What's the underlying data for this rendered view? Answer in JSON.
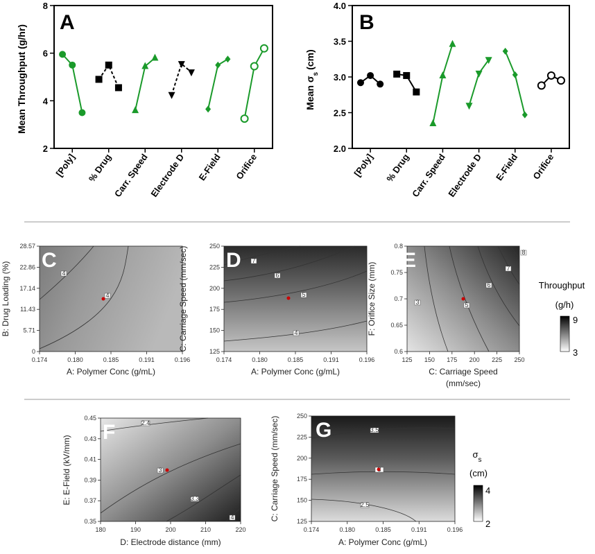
{
  "figure": {
    "separator_color": "#9a9a9a",
    "series_colors": {
      "green": "#1a9a2a",
      "black": "#000000"
    }
  },
  "chart_data": [
    {
      "type": "line",
      "panel": "A",
      "ylabel": "Mean Throughput (g/hr)",
      "ylim": [
        2,
        8
      ],
      "yticks": [
        "2",
        "4",
        "6",
        "8"
      ],
      "categories": [
        "[Poly]",
        "% Drug",
        "Carr. Speed",
        "Electrode D",
        "E-Field",
        "Orifice"
      ],
      "factors": [
        {
          "name": "[Poly]",
          "color": "green",
          "dashed": false,
          "marker": "circle",
          "values": [
            5.95,
            5.5,
            3.5
          ]
        },
        {
          "name": "% Drug",
          "color": "black",
          "dashed": true,
          "marker": "square",
          "values": [
            4.9,
            5.5,
            4.55
          ]
        },
        {
          "name": "Carr. Speed",
          "color": "green",
          "dashed": false,
          "marker": "triangle-up",
          "values": [
            3.6,
            5.45,
            5.8
          ]
        },
        {
          "name": "Electrode D",
          "color": "black",
          "dashed": true,
          "marker": "triangle-down",
          "values": [
            4.25,
            5.55,
            5.2
          ]
        },
        {
          "name": "E-Field",
          "color": "green",
          "dashed": false,
          "marker": "diamond",
          "values": [
            3.65,
            5.5,
            5.75
          ]
        },
        {
          "name": "Orifice",
          "color": "green",
          "dashed": false,
          "marker": "open-circle",
          "values": [
            3.25,
            5.45,
            6.2
          ]
        }
      ]
    },
    {
      "type": "line",
      "panel": "B",
      "ylabel_main": "Mean σ",
      "ylabel_sub": "s",
      "ylabel_unit": "(cm)",
      "ylim": [
        2.0,
        4.0
      ],
      "yticks": [
        "2.0",
        "2.5",
        "3.0",
        "3.5",
        "4.0"
      ],
      "categories": [
        "[Poly]",
        "% Drug",
        "Carr. Speed",
        "Electrode D",
        "E-Field",
        "Orifice"
      ],
      "factors": [
        {
          "name": "[Poly]",
          "color": "black",
          "dashed": false,
          "marker": "circle",
          "values": [
            2.92,
            3.02,
            2.9
          ]
        },
        {
          "name": "% Drug",
          "color": "black",
          "dashed": false,
          "marker": "square",
          "values": [
            3.04,
            3.02,
            2.79
          ]
        },
        {
          "name": "Carr. Speed",
          "color": "green",
          "dashed": false,
          "marker": "triangle-up",
          "values": [
            2.35,
            3.02,
            3.46
          ]
        },
        {
          "name": "Electrode D",
          "color": "green",
          "dashed": false,
          "marker": "triangle-down",
          "values": [
            2.6,
            3.05,
            3.24
          ]
        },
        {
          "name": "E-Field",
          "color": "green",
          "dashed": false,
          "marker": "diamond",
          "values": [
            3.36,
            3.03,
            2.47
          ]
        },
        {
          "name": "Orifice",
          "color": "black",
          "dashed": false,
          "marker": "open-circle",
          "values": [
            2.88,
            3.02,
            2.95
          ]
        }
      ]
    },
    {
      "type": "heatmap",
      "panel": "C",
      "xlabel": "A: Polymer Conc (g/mL)",
      "ylabel": "B: Drug Loading (%)",
      "xlim": [
        0.174,
        0.196
      ],
      "ylim": [
        0,
        28.57
      ],
      "xticks": [
        "0.174",
        "0.180",
        "0.185",
        "0.191",
        "0.196"
      ],
      "yticks": [
        "0",
        "5.71",
        "11.43",
        "17.14",
        "22.86",
        "28.57"
      ],
      "contour_labels": [
        "4",
        "4"
      ],
      "design_point": [
        0.185,
        14.3
      ]
    },
    {
      "type": "heatmap",
      "panel": "D",
      "xlabel": "A: Polymer Conc (g/mL)",
      "ylabel": "C: Carriage Speed (mm/sec)",
      "xlim": [
        0.174,
        0.196
      ],
      "ylim": [
        125,
        250
      ],
      "xticks": [
        "0.174",
        "0.180",
        "0.185",
        "0.191",
        "0.196"
      ],
      "yticks": [
        "125",
        "150",
        "175",
        "200",
        "225",
        "250"
      ],
      "contour_labels": [
        "7",
        "6",
        "5",
        "4"
      ],
      "design_point": [
        0.185,
        187.5
      ]
    },
    {
      "type": "heatmap",
      "panel": "E",
      "xlabel_line1": "C: Carriage Speed",
      "xlabel_line2": "(mm/sec)",
      "ylabel": "F: Orifice Size (mm)",
      "xlim": [
        125,
        250
      ],
      "ylim": [
        0.6,
        0.8
      ],
      "xticks": [
        "125",
        "150",
        "175",
        "200",
        "225",
        "250"
      ],
      "yticks": [
        "0.6",
        "0.65",
        "0.7",
        "0.75",
        "0.8"
      ],
      "contour_labels": [
        "3",
        "5",
        "6",
        "7",
        "8"
      ],
      "design_point": [
        187.5,
        0.7
      ],
      "colorbar": {
        "title": "Throughput",
        "unit": "(g/h)",
        "min": "3",
        "max": "9"
      }
    },
    {
      "type": "heatmap",
      "panel": "F",
      "xlabel": "D: Electrode distance (mm)",
      "ylabel": "E: E-Field (kV/mm)",
      "xlim": [
        180,
        220
      ],
      "ylim": [
        0.35,
        0.45
      ],
      "xticks": [
        "180",
        "190",
        "200",
        "210",
        "220"
      ],
      "yticks": [
        "0.35",
        "0.37",
        "0.39",
        "0.41",
        "0.43",
        "0.45"
      ],
      "contour_labels": [
        "2.4",
        "3",
        "3.3",
        "4"
      ],
      "design_point": [
        200,
        0.4
      ]
    },
    {
      "type": "heatmap",
      "panel": "G",
      "xlabel": "A: Polymer Conc (g/mL)",
      "ylabel": "C: Carriage Speed (mm/sec)",
      "xlim": [
        0.174,
        0.196
      ],
      "ylim": [
        125,
        250
      ],
      "xticks": [
        "0.174",
        "0.180",
        "0.185",
        "0.191",
        "0.196"
      ],
      "yticks": [
        "125",
        "150",
        "175",
        "200",
        "225",
        "250"
      ],
      "contour_labels": [
        "3.5",
        "3",
        "2.5"
      ],
      "design_point": [
        0.185,
        187.5
      ],
      "colorbar": {
        "title_main": "σ",
        "title_sub": "s",
        "unit": "(cm)",
        "min": "2",
        "max": "4"
      }
    }
  ]
}
